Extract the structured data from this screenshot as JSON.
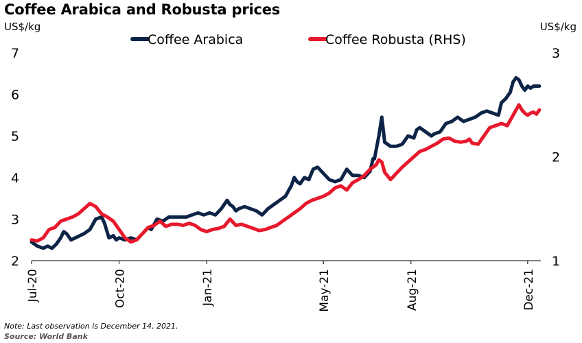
{
  "header": {
    "title": "Coffee Arabica and Robusta prices",
    "left_unit": "US$/kg",
    "right_unit": "US$/kg"
  },
  "footer": {
    "note": "Note: Last observation is December 14, 2021.",
    "source": "Source: World Bank"
  },
  "chart_data": {
    "type": "line",
    "title": "Coffee Arabica and Robusta prices",
    "x_tick_labels": [
      "Jul-20",
      "Oct-20",
      "Jan-21",
      "May-21",
      "Aug-21",
      "Dec-21"
    ],
    "x_tick_months": [
      0,
      3,
      6,
      10,
      13,
      17
    ],
    "x_range_months": [
      0,
      17.45
    ],
    "y_left": {
      "label": "US$/kg",
      "range": [
        2,
        7
      ],
      "ticks": [
        2,
        3,
        4,
        5,
        6,
        7
      ]
    },
    "y_right": {
      "label": "US$/kg",
      "range": [
        1,
        3
      ],
      "ticks": [
        1,
        2,
        3
      ]
    },
    "legend_position": "top-center",
    "grid": false,
    "series": [
      {
        "name": "Coffee Arabica",
        "axis": "left",
        "color": "#0d2447",
        "x_months": [
          0,
          0.2,
          0.4,
          0.55,
          0.7,
          0.85,
          1.0,
          1.1,
          1.2,
          1.35,
          1.5,
          1.65,
          1.8,
          2.0,
          2.2,
          2.4,
          2.5,
          2.65,
          2.8,
          2.9,
          3.0,
          3.2,
          3.4,
          3.6,
          3.8,
          4.0,
          4.1,
          4.3,
          4.5,
          4.7,
          5.0,
          5.3,
          5.5,
          5.7,
          5.9,
          6.1,
          6.3,
          6.5,
          6.7,
          6.8,
          6.9,
          7.0,
          7.1,
          7.3,
          7.5,
          7.7,
          7.9,
          8.1,
          8.3,
          8.5,
          8.7,
          8.9,
          9.0,
          9.1,
          9.2,
          9.35,
          9.5,
          9.65,
          9.8,
          10.0,
          10.2,
          10.4,
          10.6,
          10.8,
          11.0,
          11.2,
          11.4,
          11.6,
          11.7,
          11.75,
          11.9,
          12.0,
          12.1,
          12.3,
          12.5,
          12.7,
          12.9,
          13.1,
          13.2,
          13.3,
          13.5,
          13.7,
          13.8,
          14.0,
          14.2,
          14.4,
          14.6,
          14.8,
          15.0,
          15.2,
          15.4,
          15.6,
          15.8,
          16.0,
          16.1,
          16.25,
          16.4,
          16.5,
          16.6,
          16.7,
          16.8,
          16.9,
          17.0,
          17.1,
          17.2,
          17.3,
          17.4
        ],
        "values": [
          2.45,
          2.35,
          2.3,
          2.35,
          2.3,
          2.4,
          2.55,
          2.7,
          2.65,
          2.5,
          2.55,
          2.6,
          2.65,
          2.75,
          3.0,
          3.05,
          2.9,
          2.55,
          2.6,
          2.5,
          2.55,
          2.5,
          2.55,
          2.5,
          2.65,
          2.8,
          2.75,
          3.0,
          2.95,
          3.05,
          3.05,
          3.05,
          3.1,
          3.15,
          3.1,
          3.15,
          3.1,
          3.25,
          3.45,
          3.35,
          3.3,
          3.2,
          3.25,
          3.3,
          3.25,
          3.2,
          3.1,
          3.25,
          3.35,
          3.45,
          3.55,
          3.8,
          4.0,
          3.9,
          3.85,
          4.0,
          3.95,
          4.2,
          4.25,
          4.1,
          3.95,
          3.9,
          3.95,
          4.2,
          4.05,
          4.05,
          4.0,
          4.15,
          4.45,
          4.45,
          5.0,
          5.45,
          4.85,
          4.75,
          4.75,
          4.8,
          5.0,
          4.95,
          5.15,
          5.2,
          5.1,
          5.0,
          5.05,
          5.1,
          5.3,
          5.35,
          5.45,
          5.35,
          5.4,
          5.45,
          5.55,
          5.6,
          5.55,
          5.5,
          5.8,
          5.9,
          6.05,
          6.3,
          6.4,
          6.35,
          6.2,
          6.1,
          6.2,
          6.15,
          6.2,
          6.2,
          6.2
        ]
      },
      {
        "name": "Coffee Robusta (RHS)",
        "axis": "right",
        "color": "#e8192c",
        "x_months": [
          0,
          0.2,
          0.4,
          0.6,
          0.8,
          1.0,
          1.2,
          1.4,
          1.6,
          1.8,
          2.0,
          2.2,
          2.4,
          2.6,
          2.8,
          3.0,
          3.2,
          3.4,
          3.6,
          3.8,
          4.0,
          4.2,
          4.4,
          4.6,
          4.8,
          5.0,
          5.2,
          5.4,
          5.6,
          5.8,
          6.0,
          6.2,
          6.4,
          6.6,
          6.8,
          7.0,
          7.2,
          7.4,
          7.6,
          7.8,
          8.0,
          8.2,
          8.4,
          8.6,
          8.8,
          9.0,
          9.2,
          9.4,
          9.6,
          9.8,
          10.0,
          10.2,
          10.4,
          10.6,
          10.8,
          11.0,
          11.2,
          11.4,
          11.6,
          11.8,
          11.9,
          12.0,
          12.1,
          12.3,
          12.5,
          12.7,
          12.9,
          13.1,
          13.3,
          13.5,
          13.7,
          13.9,
          14.1,
          14.3,
          14.5,
          14.7,
          14.9,
          15.0,
          15.1,
          15.3,
          15.5,
          15.7,
          15.9,
          16.1,
          16.3,
          16.5,
          16.6,
          16.7,
          16.8,
          16.9,
          17.0,
          17.1,
          17.2,
          17.3,
          17.4
        ],
        "values": [
          1.2,
          1.19,
          1.22,
          1.3,
          1.32,
          1.38,
          1.4,
          1.42,
          1.45,
          1.5,
          1.55,
          1.52,
          1.45,
          1.42,
          1.38,
          1.3,
          1.22,
          1.18,
          1.2,
          1.26,
          1.32,
          1.34,
          1.38,
          1.33,
          1.35,
          1.35,
          1.34,
          1.36,
          1.34,
          1.3,
          1.28,
          1.3,
          1.31,
          1.33,
          1.4,
          1.34,
          1.35,
          1.33,
          1.31,
          1.29,
          1.3,
          1.32,
          1.34,
          1.38,
          1.42,
          1.46,
          1.5,
          1.55,
          1.58,
          1.6,
          1.62,
          1.65,
          1.7,
          1.72,
          1.68,
          1.75,
          1.78,
          1.82,
          1.88,
          1.92,
          1.97,
          1.95,
          1.85,
          1.78,
          1.84,
          1.9,
          1.95,
          2.0,
          2.05,
          2.07,
          2.1,
          2.13,
          2.17,
          2.18,
          2.15,
          2.14,
          2.15,
          2.17,
          2.13,
          2.12,
          2.2,
          2.28,
          2.3,
          2.32,
          2.3,
          2.4,
          2.45,
          2.5,
          2.45,
          2.42,
          2.4,
          2.42,
          2.43,
          2.41,
          2.45
        ]
      }
    ]
  }
}
